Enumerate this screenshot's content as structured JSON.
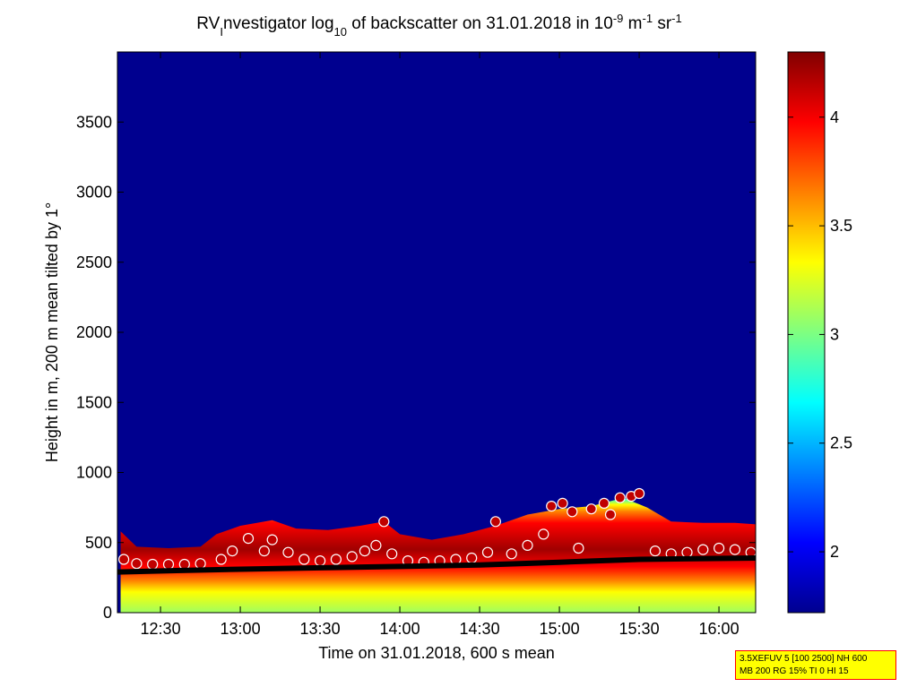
{
  "chart_data": {
    "type": "heatmap",
    "title": {
      "prefix": "RV",
      "sub_i": "I",
      "mid": "nvestigator log",
      "sub_10": "10",
      "rest": " of backscatter on 31.01.2018 in 10",
      "sup1": "-9",
      "unit_m": " m",
      "sup2": "-1",
      "unit_sr": " sr",
      "sup3": "-1"
    },
    "xlabel": "Time on 31.01.2018, 600 s mean",
    "ylabel": "Height in m, 200 m mean tilted by 1°",
    "x_ticks": [
      "12:30",
      "13:00",
      "13:30",
      "14:00",
      "14:30",
      "15:00",
      "15:30",
      "16:00"
    ],
    "x_tick_hours": [
      12.5,
      13.0,
      13.5,
      14.0,
      14.5,
      15.0,
      15.5,
      16.0
    ],
    "xlim_hours": [
      12.23,
      16.23
    ],
    "y_ticks": [
      0,
      500,
      1000,
      1500,
      2000,
      2500,
      3000,
      3500
    ],
    "ylim": [
      0,
      4000
    ],
    "colorbar": {
      "ticks": [
        "2",
        "2.5",
        "3",
        "3.5",
        "4"
      ],
      "tick_values": [
        2,
        2.5,
        3,
        3.5,
        4
      ],
      "range": [
        1.72,
        4.3
      ],
      "colormap": "jet"
    },
    "aerosol_layer_top_m": [
      {
        "t": 12.25,
        "h": 580
      },
      {
        "t": 12.35,
        "h": 470
      },
      {
        "t": 12.55,
        "h": 460
      },
      {
        "t": 12.75,
        "h": 470
      },
      {
        "t": 12.85,
        "h": 560
      },
      {
        "t": 13.0,
        "h": 620
      },
      {
        "t": 13.2,
        "h": 660
      },
      {
        "t": 13.35,
        "h": 600
      },
      {
        "t": 13.55,
        "h": 590
      },
      {
        "t": 13.75,
        "h": 620
      },
      {
        "t": 13.9,
        "h": 650
      },
      {
        "t": 14.0,
        "h": 560
      },
      {
        "t": 14.2,
        "h": 520
      },
      {
        "t": 14.4,
        "h": 560
      },
      {
        "t": 14.6,
        "h": 620
      },
      {
        "t": 14.8,
        "h": 700
      },
      {
        "t": 15.0,
        "h": 740
      },
      {
        "t": 15.2,
        "h": 760
      },
      {
        "t": 15.4,
        "h": 820
      },
      {
        "t": 15.55,
        "h": 750
      },
      {
        "t": 15.7,
        "h": 650
      },
      {
        "t": 15.9,
        "h": 640
      },
      {
        "t": 16.1,
        "h": 640
      },
      {
        "t": 16.23,
        "h": 630
      }
    ],
    "layer_markers_m": [
      {
        "t": 12.27,
        "h": 380
      },
      {
        "t": 12.35,
        "h": 350
      },
      {
        "t": 12.45,
        "h": 345
      },
      {
        "t": 12.55,
        "h": 345
      },
      {
        "t": 12.65,
        "h": 345
      },
      {
        "t": 12.75,
        "h": 350
      },
      {
        "t": 12.88,
        "h": 380
      },
      {
        "t": 12.95,
        "h": 440
      },
      {
        "t": 13.05,
        "h": 530
      },
      {
        "t": 13.15,
        "h": 440
      },
      {
        "t": 13.2,
        "h": 520
      },
      {
        "t": 13.3,
        "h": 430
      },
      {
        "t": 13.4,
        "h": 380
      },
      {
        "t": 13.5,
        "h": 370
      },
      {
        "t": 13.6,
        "h": 380
      },
      {
        "t": 13.7,
        "h": 400
      },
      {
        "t": 13.78,
        "h": 440
      },
      {
        "t": 13.85,
        "h": 480
      },
      {
        "t": 13.9,
        "h": 650
      },
      {
        "t": 13.95,
        "h": 420
      },
      {
        "t": 14.05,
        "h": 370
      },
      {
        "t": 14.15,
        "h": 360
      },
      {
        "t": 14.25,
        "h": 370
      },
      {
        "t": 14.35,
        "h": 380
      },
      {
        "t": 14.45,
        "h": 390
      },
      {
        "t": 14.55,
        "h": 430
      },
      {
        "t": 14.6,
        "h": 650
      },
      {
        "t": 14.7,
        "h": 420
      },
      {
        "t": 14.8,
        "h": 480
      },
      {
        "t": 14.9,
        "h": 560
      },
      {
        "t": 14.95,
        "h": 760
      },
      {
        "t": 15.02,
        "h": 780
      },
      {
        "t": 15.08,
        "h": 720
      },
      {
        "t": 15.12,
        "h": 460
      },
      {
        "t": 15.2,
        "h": 740
      },
      {
        "t": 15.28,
        "h": 780
      },
      {
        "t": 15.32,
        "h": 700
      },
      {
        "t": 15.38,
        "h": 820
      },
      {
        "t": 15.45,
        "h": 830
      },
      {
        "t": 15.5,
        "h": 850
      },
      {
        "t": 15.6,
        "h": 440
      },
      {
        "t": 15.7,
        "h": 420
      },
      {
        "t": 15.8,
        "h": 430
      },
      {
        "t": 15.9,
        "h": 450
      },
      {
        "t": 16.0,
        "h": 460
      },
      {
        "t": 16.1,
        "h": 450
      },
      {
        "t": 16.2,
        "h": 430
      }
    ],
    "mixing_layer_m": [
      {
        "t": 12.23,
        "h": 290
      },
      {
        "t": 12.6,
        "h": 300
      },
      {
        "t": 13.0,
        "h": 310
      },
      {
        "t": 13.5,
        "h": 320
      },
      {
        "t": 14.0,
        "h": 330
      },
      {
        "t": 14.5,
        "h": 340
      },
      {
        "t": 15.0,
        "h": 360
      },
      {
        "t": 15.5,
        "h": 380
      },
      {
        "t": 16.23,
        "h": 390
      }
    ],
    "colors": {
      "background_blue": "#00008f",
      "marker_fill": "#c00000",
      "marker_edge": "#ffffff",
      "marker_inner": "#0000ff",
      "mixing_layer": "#000000"
    }
  },
  "annotation": {
    "line1": "3.5XEFUV 5 [100 2500] NH 600",
    "line2": "MB 200 RG 15% TI 0 HI 15"
  }
}
